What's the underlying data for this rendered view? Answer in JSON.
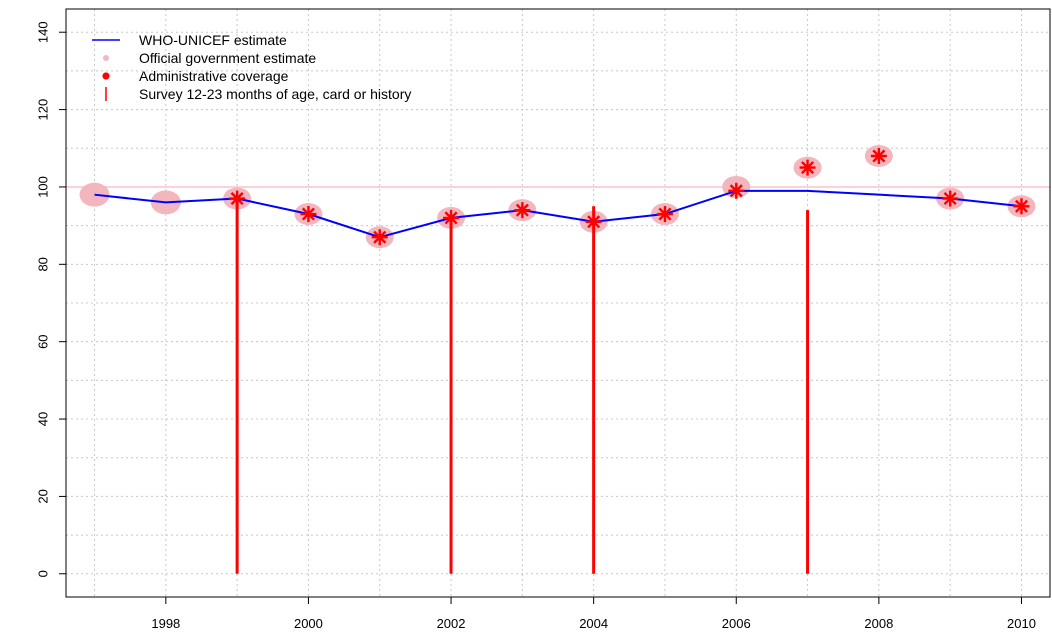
{
  "chart_data": {
    "type": "line",
    "title": "",
    "xlabel": "",
    "ylabel": "",
    "xlim": [
      1996.6,
      2010.4
    ],
    "ylim": [
      -6,
      146
    ],
    "x_ticks": [
      1998,
      2000,
      2002,
      2004,
      2006,
      2008,
      2010
    ],
    "y_ticks": [
      0,
      20,
      40,
      60,
      80,
      100,
      120,
      140
    ],
    "x_tick_labels": [
      "1998",
      "2000",
      "2002",
      "2004",
      "2006",
      "2008",
      "2010"
    ],
    "y_tick_labels": [
      "0",
      "20",
      "40",
      "60",
      "80",
      "100",
      "120",
      "140"
    ],
    "grid": true,
    "reference_line": 100,
    "legend_position": "top-left",
    "legend": [
      {
        "label": "WHO-UNICEF estimate",
        "marker": "line",
        "color": "#0000ff"
      },
      {
        "label": "Official government estimate",
        "marker": "dot",
        "color": "#f4b6bd"
      },
      {
        "label": "Administrative coverage",
        "marker": "asterisk",
        "color": "#ff0000"
      },
      {
        "label": "Survey 12-23 months of age, card or history",
        "marker": "vbar",
        "color": "#ff0000"
      }
    ],
    "series": [
      {
        "name": "WHO-UNICEF estimate",
        "x": [
          1997,
          1998,
          1999,
          2000,
          2001,
          2002,
          2003,
          2004,
          2005,
          2006,
          2007,
          2008,
          2009,
          2010
        ],
        "values": [
          98,
          96,
          97,
          93,
          87,
          92,
          94,
          91,
          93,
          99,
          99,
          98,
          97,
          95
        ],
        "color": "#0000ff"
      },
      {
        "name": "Official government estimate",
        "x": [
          1997,
          1998,
          1999,
          2000,
          2001,
          2002,
          2003,
          2004,
          2005,
          2006,
          2007,
          2008,
          2009,
          2010
        ],
        "values": [
          98,
          96,
          97,
          93,
          87,
          92,
          94,
          91,
          93,
          100,
          105,
          108,
          97,
          95
        ],
        "color": "#f4b6bd"
      },
      {
        "name": "Administrative coverage",
        "x": [
          1999,
          2000,
          2001,
          2002,
          2003,
          2004,
          2005,
          2006,
          2007,
          2008,
          2009,
          2010
        ],
        "values": [
          97,
          93,
          87,
          92,
          94,
          91,
          93,
          99,
          105,
          108,
          97,
          95
        ],
        "color": "#ff0000"
      },
      {
        "name": "Survey 12-23 months of age, card or history",
        "x": [
          1999,
          2002,
          2004,
          2007
        ],
        "values": [
          97,
          92,
          95,
          94
        ],
        "color": "#ff0000"
      }
    ]
  },
  "colors": {
    "grid": "#c8c8c8",
    "axis": "#000000",
    "reference_line": "#ffc0cb"
  }
}
